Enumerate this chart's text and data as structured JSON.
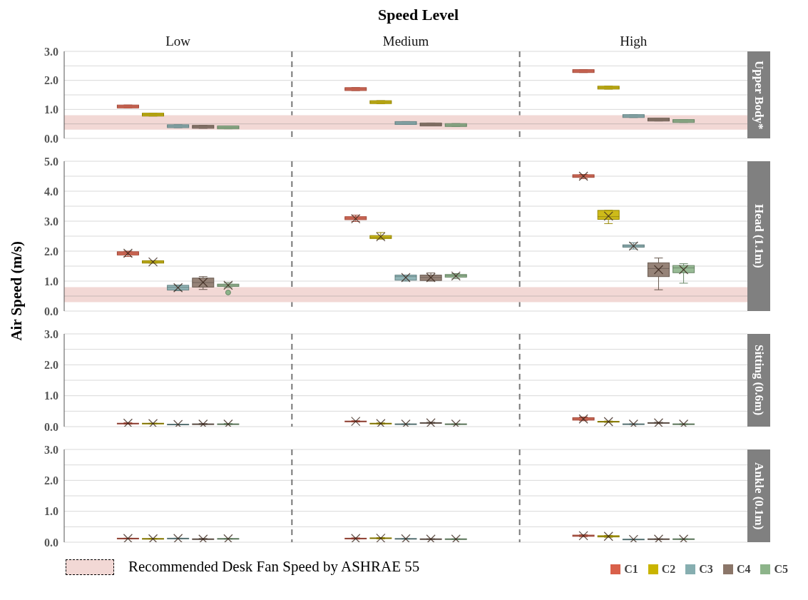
{
  "chart_data": [
    {
      "type": "box",
      "title": "Speed Level",
      "y2label": "Upper Body*",
      "categories": [
        "Low",
        "Medium",
        "High"
      ],
      "ylim": [
        0,
        3
      ],
      "yticks": [
        {
          "value": 0,
          "label": "0.0"
        },
        {
          "value": 0.5,
          "label": null
        },
        {
          "value": 1,
          "label": "1.0"
        },
        {
          "value": 1.5,
          "label": null
        },
        {
          "value": 2,
          "label": "2.0"
        },
        {
          "value": 2.5,
          "label": null
        },
        {
          "value": 3,
          "label": "3.0"
        }
      ],
      "grid": "y",
      "bands": [
        {
          "axis": "y",
          "from": 0.3,
          "to": 0.8,
          "color": "#f2d8d5"
        }
      ],
      "ref_lines": [
        {
          "axis": "y",
          "value": 0.5,
          "color": "#c8b8b6"
        }
      ],
      "series": [
        {
          "color": "#d9604a",
          "boxes": [
            {
              "low": 1.05,
              "q1": 1.05,
              "median": 1.1,
              "q3": 1.15,
              "high": 1.15
            },
            {
              "low": 1.65,
              "q1": 1.65,
              "median": 1.7,
              "q3": 1.75,
              "high": 1.75
            },
            {
              "low": 2.27,
              "q1": 2.27,
              "median": 2.32,
              "q3": 2.37,
              "high": 2.37
            }
          ]
        },
        {
          "color": "#c9b400",
          "boxes": [
            {
              "low": 0.77,
              "q1": 0.77,
              "median": 0.82,
              "q3": 0.87,
              "high": 0.87
            },
            {
              "low": 1.2,
              "q1": 1.2,
              "median": 1.25,
              "q3": 1.3,
              "high": 1.3
            },
            {
              "low": 1.7,
              "q1": 1.7,
              "median": 1.75,
              "q3": 1.8,
              "high": 1.8
            }
          ]
        },
        {
          "color": "#86aeb0",
          "boxes": [
            {
              "low": 0.37,
              "q1": 0.37,
              "median": 0.42,
              "q3": 0.47,
              "high": 0.47
            },
            {
              "low": 0.48,
              "q1": 0.48,
              "median": 0.53,
              "q3": 0.58,
              "high": 0.58
            },
            {
              "low": 0.72,
              "q1": 0.72,
              "median": 0.77,
              "q3": 0.82,
              "high": 0.82
            }
          ]
        },
        {
          "color": "#8b7669",
          "boxes": [
            {
              "low": 0.35,
              "q1": 0.35,
              "median": 0.4,
              "q3": 0.45,
              "high": 0.45
            },
            {
              "low": 0.43,
              "q1": 0.43,
              "median": 0.48,
              "q3": 0.53,
              "high": 0.53
            },
            {
              "low": 0.6,
              "q1": 0.6,
              "median": 0.65,
              "q3": 0.7,
              "high": 0.7
            }
          ]
        },
        {
          "color": "#8db48a",
          "boxes": [
            {
              "low": 0.33,
              "q1": 0.33,
              "median": 0.38,
              "q3": 0.43,
              "high": 0.43
            },
            {
              "low": 0.41,
              "q1": 0.41,
              "median": 0.46,
              "q3": 0.51,
              "high": 0.51
            },
            {
              "low": 0.55,
              "q1": 0.55,
              "median": 0.6,
              "q3": 0.65,
              "high": 0.65
            }
          ]
        }
      ]
    },
    {
      "type": "box",
      "ylabel": "Air Speed (m/s)",
      "y2label": "Head (1.1m)",
      "categories": [
        null,
        null,
        null
      ],
      "tick_labels": "y",
      "ylim": [
        0,
        5
      ],
      "yticks": [
        {
          "value": 0,
          "label": "0.0"
        },
        {
          "value": 0.5,
          "label": null
        },
        {
          "value": 1,
          "label": "1.0"
        },
        {
          "value": 1.5,
          "label": null
        },
        {
          "value": 2,
          "label": "2.0"
        },
        {
          "value": 2.5,
          "label": null
        },
        {
          "value": 3,
          "label": "3.0"
        },
        {
          "value": 3.5,
          "label": null
        },
        {
          "value": 4,
          "label": "4.0"
        },
        {
          "value": 4.5,
          "label": null
        },
        {
          "value": 5,
          "label": "5.0"
        }
      ],
      "grid": "y",
      "bands": [
        {
          "axis": "y",
          "from": 0.3,
          "to": 0.8,
          "color": "#f2d8d5",
          "label": "Recommended Desk Fan Speed by ASHRAE 55"
        }
      ],
      "ref_lines": [
        {
          "axis": "y",
          "value": 0.5,
          "color": "#c8b8b6"
        }
      ],
      "series": [
        {
          "color": "#d9604a",
          "boxes": [
            {
              "low": 1.82,
              "q1": 1.87,
              "median": 1.93,
              "q3": 1.98,
              "high": 2.0,
              "mean": 1.93
            },
            {
              "low": 2.99,
              "q1": 3.05,
              "median": 3.1,
              "q3": 3.15,
              "high": 3.2,
              "mean": 3.08
            },
            {
              "low": 4.42,
              "q1": 4.46,
              "median": 4.5,
              "q3": 4.55,
              "high": 4.56,
              "mean": 4.5
            }
          ]
        },
        {
          "color": "#c9b400",
          "boxes": [
            {
              "low": 1.6,
              "q1": 1.6,
              "median": 1.64,
              "q3": 1.68,
              "high": 1.68,
              "mean": 1.64
            },
            {
              "low": 2.4,
              "q1": 2.42,
              "median": 2.46,
              "q3": 2.52,
              "high": 2.62,
              "mean": 2.48
            },
            {
              "low": 2.92,
              "q1": 3.06,
              "median": 3.15,
              "q3": 3.36,
              "high": 3.36,
              "mean": 3.17
            }
          ]
        },
        {
          "color": "#86aeb0",
          "boxes": [
            {
              "low": 0.68,
              "q1": 0.7,
              "median": 0.79,
              "q3": 0.86,
              "high": 0.87,
              "mean": 0.78
            },
            {
              "low": 1.0,
              "q1": 1.03,
              "median": 1.15,
              "q3": 1.2,
              "high": 1.2,
              "mean": 1.12
            },
            {
              "low": 2.07,
              "q1": 2.13,
              "median": 2.17,
              "q3": 2.21,
              "high": 2.28,
              "mean": 2.17
            }
          ]
        },
        {
          "color": "#8b7669",
          "boxes": [
            {
              "low": 0.72,
              "q1": 0.8,
              "median": 0.95,
              "q3": 1.1,
              "high": 1.15,
              "mean": 0.96
            },
            {
              "low": 1.0,
              "q1": 1.02,
              "median": 1.12,
              "q3": 1.2,
              "high": 1.27,
              "mean": 1.12
            },
            {
              "low": 0.71,
              "q1": 1.15,
              "median": 1.42,
              "q3": 1.61,
              "high": 1.77,
              "mean": 1.38
            }
          ]
        },
        {
          "color": "#8db48a",
          "boxes": [
            {
              "low": 0.78,
              "q1": 0.82,
              "median": 0.86,
              "q3": 0.9,
              "high": 0.95,
              "mean": 0.86,
              "outliers": [
                0.62
              ]
            },
            {
              "low": 1.08,
              "q1": 1.13,
              "median": 1.18,
              "q3": 1.22,
              "high": 1.25,
              "mean": 1.17
            },
            {
              "low": 0.93,
              "q1": 1.28,
              "median": 1.44,
              "q3": 1.52,
              "high": 1.58,
              "mean": 1.38
            }
          ]
        }
      ]
    },
    {
      "type": "box",
      "y2label": "Sitting (0.6m)",
      "categories": [
        null,
        null,
        null
      ],
      "tick_labels": "y",
      "ylim": [
        0,
        3
      ],
      "yticks": [
        {
          "value": 0,
          "label": "0.0"
        },
        {
          "value": 0.5,
          "label": null
        },
        {
          "value": 1,
          "label": "1.0"
        },
        {
          "value": 1.5,
          "label": null
        },
        {
          "value": 2,
          "label": "2.0"
        },
        {
          "value": 2.5,
          "label": null
        },
        {
          "value": 3,
          "label": "3.0"
        }
      ],
      "grid": "y",
      "series": [
        {
          "color": "#d9604a",
          "boxes": [
            {
              "low": 0.08,
              "q1": 0.09,
              "median": 0.1,
              "q3": 0.11,
              "high": 0.13,
              "mean": 0.11
            },
            {
              "low": 0.15,
              "q1": 0.16,
              "median": 0.17,
              "q3": 0.18,
              "high": 0.19,
              "mean": 0.17
            },
            {
              "low": 0.19,
              "q1": 0.21,
              "median": 0.25,
              "q3": 0.29,
              "high": 0.31,
              "mean": 0.25
            }
          ]
        },
        {
          "color": "#c9b400",
          "boxes": [
            {
              "low": 0.09,
              "q1": 0.09,
              "median": 0.1,
              "q3": 0.11,
              "high": 0.11,
              "mean": 0.1
            },
            {
              "low": 0.08,
              "q1": 0.09,
              "median": 0.1,
              "q3": 0.11,
              "high": 0.12,
              "mean": 0.1
            },
            {
              "low": 0.14,
              "q1": 0.15,
              "median": 0.16,
              "q3": 0.17,
              "high": 0.18,
              "mean": 0.16
            }
          ]
        },
        {
          "color": "#86aeb0",
          "boxes": [
            {
              "low": 0.06,
              "q1": 0.06,
              "median": 0.07,
              "q3": 0.08,
              "high": 0.08,
              "mean": 0.07
            },
            {
              "low": 0.07,
              "q1": 0.07,
              "median": 0.08,
              "q3": 0.09,
              "high": 0.09,
              "mean": 0.08
            },
            {
              "low": 0.07,
              "q1": 0.07,
              "median": 0.08,
              "q3": 0.09,
              "high": 0.09,
              "mean": 0.08
            }
          ]
        },
        {
          "color": "#8b7669",
          "boxes": [
            {
              "low": 0.07,
              "q1": 0.07,
              "median": 0.08,
              "q3": 0.09,
              "high": 0.1,
              "mean": 0.08
            },
            {
              "low": 0.1,
              "q1": 0.11,
              "median": 0.12,
              "q3": 0.13,
              "high": 0.14,
              "mean": 0.12
            },
            {
              "low": 0.1,
              "q1": 0.11,
              "median": 0.12,
              "q3": 0.13,
              "high": 0.14,
              "mean": 0.12
            }
          ]
        },
        {
          "color": "#8db48a",
          "boxes": [
            {
              "low": 0.07,
              "q1": 0.07,
              "median": 0.08,
              "q3": 0.09,
              "high": 0.1,
              "mean": 0.08
            },
            {
              "low": 0.07,
              "q1": 0.07,
              "median": 0.08,
              "q3": 0.09,
              "high": 0.09,
              "mean": 0.08
            },
            {
              "low": 0.07,
              "q1": 0.07,
              "median": 0.08,
              "q3": 0.09,
              "high": 0.09,
              "mean": 0.08
            }
          ]
        }
      ]
    },
    {
      "type": "box",
      "y2label": "Ankle (0.1m)",
      "categories": [
        null,
        null,
        null
      ],
      "tick_labels": "y",
      "ylim": [
        0,
        3
      ],
      "yticks": [
        {
          "value": 0,
          "label": "0.0"
        },
        {
          "value": 0.5,
          "label": null
        },
        {
          "value": 1,
          "label": "1.0"
        },
        {
          "value": 1.5,
          "label": null
        },
        {
          "value": 2,
          "label": "2.0"
        },
        {
          "value": 2.5,
          "label": null
        },
        {
          "value": 3,
          "label": "3.0"
        }
      ],
      "grid": "y",
      "legend": "bottom right",
      "series": [
        {
          "name": "C1",
          "color": "#d9604a",
          "boxes": [
            {
              "low": 0.11,
              "q1": 0.11,
              "median": 0.12,
              "q3": 0.13,
              "high": 0.13,
              "mean": 0.12
            },
            {
              "low": 0.1,
              "q1": 0.11,
              "median": 0.12,
              "q3": 0.13,
              "high": 0.14,
              "mean": 0.12
            },
            {
              "low": 0.18,
              "q1": 0.19,
              "median": 0.21,
              "q3": 0.23,
              "high": 0.24,
              "mean": 0.21
            }
          ]
        },
        {
          "name": "C2",
          "color": "#c9b400",
          "boxes": [
            {
              "low": 0.1,
              "q1": 0.1,
              "median": 0.11,
              "q3": 0.12,
              "high": 0.12,
              "mean": 0.11
            },
            {
              "low": 0.11,
              "q1": 0.12,
              "median": 0.13,
              "q3": 0.14,
              "high": 0.15,
              "mean": 0.13
            },
            {
              "low": 0.16,
              "q1": 0.17,
              "median": 0.19,
              "q3": 0.21,
              "high": 0.22,
              "mean": 0.19
            }
          ]
        },
        {
          "name": "C3",
          "color": "#86aeb0",
          "boxes": [
            {
              "low": 0.11,
              "q1": 0.11,
              "median": 0.12,
              "q3": 0.13,
              "high": 0.13,
              "mean": 0.12
            },
            {
              "low": 0.1,
              "q1": 0.1,
              "median": 0.11,
              "q3": 0.12,
              "high": 0.12,
              "mean": 0.11
            },
            {
              "low": 0.08,
              "q1": 0.08,
              "median": 0.09,
              "q3": 0.1,
              "high": 0.1,
              "mean": 0.09
            }
          ]
        },
        {
          "name": "C4",
          "color": "#8b7669",
          "boxes": [
            {
              "low": 0.09,
              "q1": 0.09,
              "median": 0.1,
              "q3": 0.11,
              "high": 0.12,
              "mean": 0.1
            },
            {
              "low": 0.09,
              "q1": 0.09,
              "median": 0.1,
              "q3": 0.11,
              "high": 0.11,
              "mean": 0.1
            },
            {
              "low": 0.09,
              "q1": 0.09,
              "median": 0.1,
              "q3": 0.11,
              "high": 0.11,
              "mean": 0.1
            }
          ]
        },
        {
          "name": "C5",
          "color": "#8db48a",
          "boxes": [
            {
              "low": 0.1,
              "q1": 0.1,
              "median": 0.11,
              "q3": 0.12,
              "high": 0.12,
              "mean": 0.11
            },
            {
              "low": 0.09,
              "q1": 0.09,
              "median": 0.1,
              "q3": 0.11,
              "high": 0.11,
              "mean": 0.1
            },
            {
              "low": 0.09,
              "q1": 0.09,
              "median": 0.1,
              "q3": 0.11,
              "high": 0.11,
              "mean": 0.1
            }
          ]
        }
      ]
    }
  ]
}
